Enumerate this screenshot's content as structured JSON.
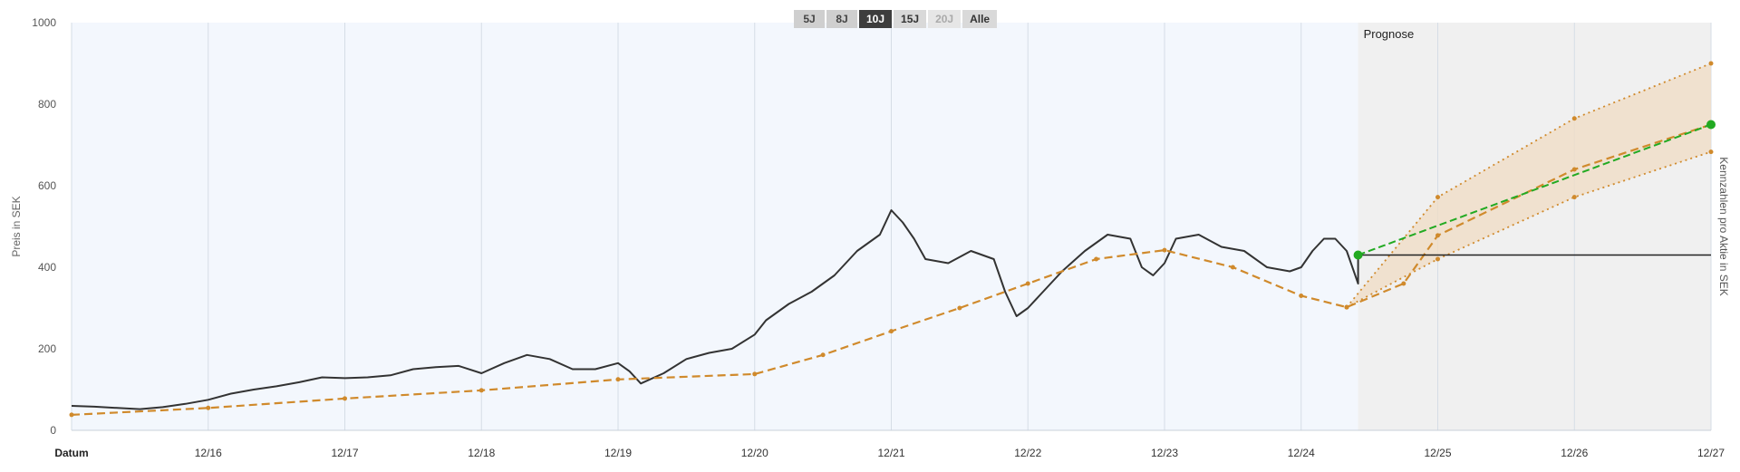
{
  "range_buttons": [
    {
      "label": "5J",
      "state": "muted"
    },
    {
      "label": "8J",
      "state": "muted"
    },
    {
      "label": "10J",
      "state": "active"
    },
    {
      "label": "15J",
      "state": "normal"
    },
    {
      "label": "20J",
      "state": "disabled"
    },
    {
      "label": "Alle",
      "state": "normal"
    }
  ],
  "colors": {
    "history_bg": "#f3f7fd",
    "forecast_bg": "#f0f0f0",
    "grid": "#d6dde6",
    "price_line": "#333333",
    "fair_value_line": "#d08a2c",
    "band_fill": "#f0dcc4",
    "target_line": "#22aa22",
    "current_price_line": "#222222"
  },
  "chart_data": {
    "type": "line",
    "ylabel": "Preis in SEK",
    "ylabel_right": "Kennzahlen pro Aktie in SEK",
    "xlabel": "Datum",
    "forecast_label": "Prognose",
    "ylim": [
      0,
      1000
    ],
    "y_ticks": [
      "0",
      "200",
      "400",
      "600",
      "800",
      "1000"
    ],
    "x_range": [
      "2015-12",
      "2027-12"
    ],
    "x_ticks": [
      {
        "date": "2016-12",
        "label": "12/16"
      },
      {
        "date": "2017-12",
        "label": "12/17"
      },
      {
        "date": "2018-12",
        "label": "12/18"
      },
      {
        "date": "2019-12",
        "label": "12/19"
      },
      {
        "date": "2020-12",
        "label": "12/20"
      },
      {
        "date": "2021-12",
        "label": "12/21"
      },
      {
        "date": "2022-12",
        "label": "12/22"
      },
      {
        "date": "2023-12",
        "label": "12/23"
      },
      {
        "date": "2024-12",
        "label": "12/24"
      },
      {
        "date": "2025-12",
        "label": "12/25"
      },
      {
        "date": "2026-12",
        "label": "12/26"
      },
      {
        "date": "2027-12",
        "label": "12/27"
      }
    ],
    "forecast_start": "2025-05",
    "series": [
      {
        "kind": "price",
        "points": [
          [
            "2015-12",
            60
          ],
          [
            "2016-02",
            58
          ],
          [
            "2016-04",
            55
          ],
          [
            "2016-06",
            52
          ],
          [
            "2016-08",
            57
          ],
          [
            "2016-10",
            65
          ],
          [
            "2016-12",
            75
          ],
          [
            "2017-02",
            90
          ],
          [
            "2017-04",
            100
          ],
          [
            "2017-06",
            108
          ],
          [
            "2017-08",
            118
          ],
          [
            "2017-10",
            130
          ],
          [
            "2017-12",
            128
          ],
          [
            "2018-02",
            130
          ],
          [
            "2018-04",
            135
          ],
          [
            "2018-06",
            150
          ],
          [
            "2018-08",
            155
          ],
          [
            "2018-10",
            158
          ],
          [
            "2018-12",
            140
          ],
          [
            "2019-02",
            165
          ],
          [
            "2019-04",
            185
          ],
          [
            "2019-06",
            175
          ],
          [
            "2019-08",
            150
          ],
          [
            "2019-10",
            150
          ],
          [
            "2019-12",
            165
          ],
          [
            "2020-01",
            145
          ],
          [
            "2020-02",
            115
          ],
          [
            "2020-04",
            140
          ],
          [
            "2020-06",
            175
          ],
          [
            "2020-08",
            190
          ],
          [
            "2020-10",
            200
          ],
          [
            "2020-12",
            235
          ],
          [
            "2021-01",
            270
          ],
          [
            "2021-03",
            310
          ],
          [
            "2021-05",
            340
          ],
          [
            "2021-07",
            380
          ],
          [
            "2021-09",
            440
          ],
          [
            "2021-11",
            480
          ],
          [
            "2021-12",
            540
          ],
          [
            "2022-01",
            510
          ],
          [
            "2022-02",
            470
          ],
          [
            "2022-03",
            420
          ],
          [
            "2022-05",
            410
          ],
          [
            "2022-07",
            440
          ],
          [
            "2022-09",
            420
          ],
          [
            "2022-10",
            340
          ],
          [
            "2022-11",
            280
          ],
          [
            "2022-12",
            300
          ],
          [
            "2023-01",
            330
          ],
          [
            "2023-03",
            390
          ],
          [
            "2023-05",
            440
          ],
          [
            "2023-07",
            480
          ],
          [
            "2023-09",
            470
          ],
          [
            "2023-10",
            400
          ],
          [
            "2023-11",
            380
          ],
          [
            "2023-12",
            410
          ],
          [
            "2024-01",
            470
          ],
          [
            "2024-03",
            480
          ],
          [
            "2024-05",
            450
          ],
          [
            "2024-07",
            440
          ],
          [
            "2024-09",
            400
          ],
          [
            "2024-11",
            390
          ],
          [
            "2024-12",
            400
          ],
          [
            "2025-01",
            440
          ],
          [
            "2025-02",
            470
          ],
          [
            "2025-03",
            470
          ],
          [
            "2025-04",
            440
          ],
          [
            "2025-05",
            360
          ],
          [
            "2025-05",
            430
          ]
        ]
      },
      {
        "kind": "fair_value",
        "points": [
          [
            "2015-12",
            38
          ],
          [
            "2016-12",
            55
          ],
          [
            "2017-12",
            78
          ],
          [
            "2018-12",
            98
          ],
          [
            "2019-12",
            125
          ],
          [
            "2020-12",
            138
          ],
          [
            "2021-06",
            185
          ],
          [
            "2021-12",
            243
          ],
          [
            "2022-06",
            300
          ],
          [
            "2022-12",
            360
          ],
          [
            "2023-06",
            420
          ],
          [
            "2023-12",
            442
          ],
          [
            "2024-06",
            400
          ],
          [
            "2024-12",
            330
          ],
          [
            "2025-04",
            302
          ],
          [
            "2025-09",
            360
          ],
          [
            "2025-12",
            478
          ],
          [
            "2026-12",
            640
          ],
          [
            "2027-12",
            750
          ]
        ]
      },
      {
        "kind": "forecast_high",
        "points": [
          [
            "2025-04",
            302
          ],
          [
            "2025-12",
            572
          ],
          [
            "2026-12",
            765
          ],
          [
            "2027-12",
            900
          ]
        ]
      },
      {
        "kind": "forecast_low",
        "points": [
          [
            "2025-04",
            302
          ],
          [
            "2025-12",
            420
          ],
          [
            "2026-12",
            572
          ],
          [
            "2027-12",
            683
          ]
        ]
      },
      {
        "kind": "target",
        "points": [
          [
            "2025-05",
            430
          ],
          [
            "2027-12",
            750
          ]
        ]
      },
      {
        "kind": "current_price",
        "points": [
          [
            "2025-05",
            430
          ],
          [
            "2027-12",
            430
          ]
        ]
      }
    ]
  }
}
